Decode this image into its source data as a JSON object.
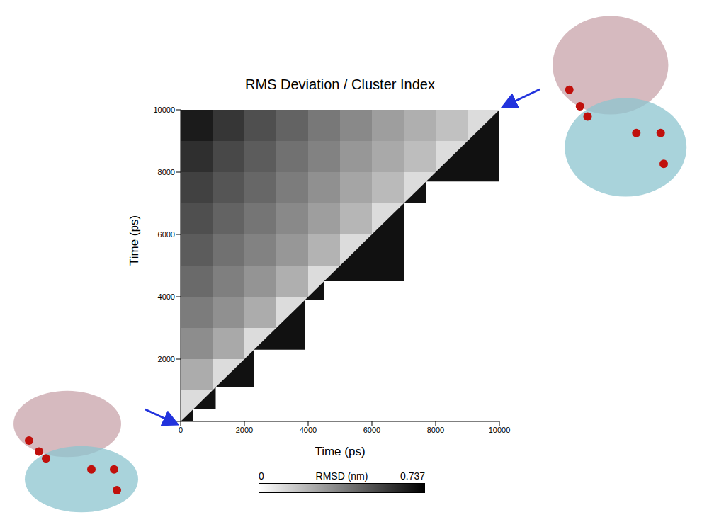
{
  "chart_data": {
    "type": "heatmap",
    "title": "RMS Deviation / Cluster Index",
    "x_label": "Time (ps)",
    "y_label": "Time (ps)",
    "xlim": [
      0,
      10000
    ],
    "ylim": [
      0,
      10000
    ],
    "xticks": [
      0,
      2000,
      4000,
      6000,
      8000,
      10000
    ],
    "yticks": [
      0,
      2000,
      4000,
      6000,
      8000,
      10000
    ],
    "grid": false,
    "bins": [
      0,
      1000,
      2000,
      3000,
      4000,
      5000,
      6000,
      7000,
      8000,
      9000,
      10000
    ],
    "rmsd": [
      [
        0.1,
        null,
        null,
        null,
        null,
        null,
        null,
        null,
        null,
        null
      ],
      [
        0.24,
        0.1,
        null,
        null,
        null,
        null,
        null,
        null,
        null,
        null
      ],
      [
        0.33,
        0.25,
        0.1,
        null,
        null,
        null,
        null,
        null,
        null,
        null
      ],
      [
        0.38,
        0.32,
        0.24,
        0.1,
        null,
        null,
        null,
        null,
        null,
        null
      ],
      [
        0.43,
        0.37,
        0.31,
        0.23,
        0.1,
        null,
        null,
        null,
        null,
        null
      ],
      [
        0.47,
        0.41,
        0.36,
        0.3,
        0.22,
        0.1,
        null,
        null,
        null,
        null
      ],
      [
        0.51,
        0.45,
        0.4,
        0.34,
        0.28,
        0.21,
        0.1,
        null,
        null,
        null
      ],
      [
        0.55,
        0.49,
        0.44,
        0.38,
        0.32,
        0.26,
        0.2,
        0.1,
        null,
        null
      ],
      [
        0.6,
        0.53,
        0.47,
        0.41,
        0.36,
        0.3,
        0.25,
        0.19,
        0.1,
        null
      ],
      [
        0.66,
        0.58,
        0.51,
        0.45,
        0.39,
        0.34,
        0.28,
        0.23,
        0.18,
        0.1
      ]
    ],
    "clusters": [
      {
        "start": 0,
        "end": 400
      },
      {
        "start": 400,
        "end": 1100
      },
      {
        "start": 1100,
        "end": 2300
      },
      {
        "start": 2300,
        "end": 3900
      },
      {
        "start": 3900,
        "end": 4500
      },
      {
        "start": 4500,
        "end": 7000
      },
      {
        "start": 7000,
        "end": 7700
      },
      {
        "start": 7700,
        "end": 10000
      }
    ],
    "colorbar": {
      "label": "RMSD (nm)",
      "range": [
        0,
        0.737
      ],
      "ticks": [
        0,
        0.737
      ]
    }
  }
}
